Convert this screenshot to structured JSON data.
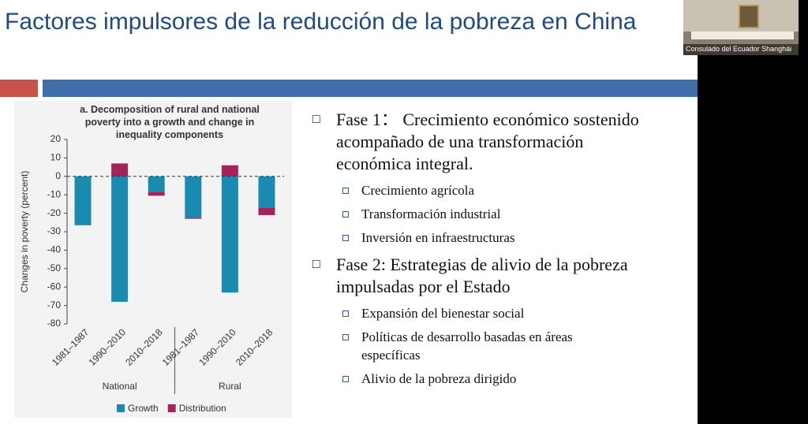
{
  "slide_title": "Factores impulsores de la reducción de la pobreza en China",
  "video_label": "Consulado del Ecuador Shanghái",
  "bullets": [
    {
      "text": "Fase 1： Crecimiento económico sostenido acompañado de una transformación económica integral.",
      "items": [
        "Crecimiento agrícola",
        "Transformación industrial",
        "Inversión en infraestructuras"
      ]
    },
    {
      "text": "Fase 2: Estrategias de alivio de la pobreza impulsadas por el Estado",
      "items": [
        "Expansión del bienestar social",
        "Políticas de desarrollo basadas en áreas específicas",
        "Alivio de la pobreza dirigido"
      ]
    }
  ],
  "chart_data": {
    "type": "stacked_bar",
    "title": "a. Decomposition of rural and national poverty into a growth and change in inequality components",
    "y_label": "Changes in poverty (percent)",
    "categories": [
      "1981–1987",
      "1990–2010",
      "2010–2018",
      "1981–1987",
      "1990–2010",
      "2010–2018"
    ],
    "groups": [
      "National",
      "Rural"
    ],
    "series": [
      {
        "name": "Growth",
        "color": "#1a8ab0",
        "values": [
          -26.5,
          -68,
          -8.5,
          -22.5,
          -63,
          -17
        ]
      },
      {
        "name": "Distribution",
        "color": "#a3235a",
        "values": [
          0,
          7,
          -2,
          -0.5,
          6,
          -4
        ]
      }
    ],
    "ylim": [
      -80,
      20
    ],
    "yticks": [
      20,
      10,
      0,
      -10,
      -20,
      -30,
      -40,
      -50,
      -60,
      -70,
      -80
    ]
  }
}
